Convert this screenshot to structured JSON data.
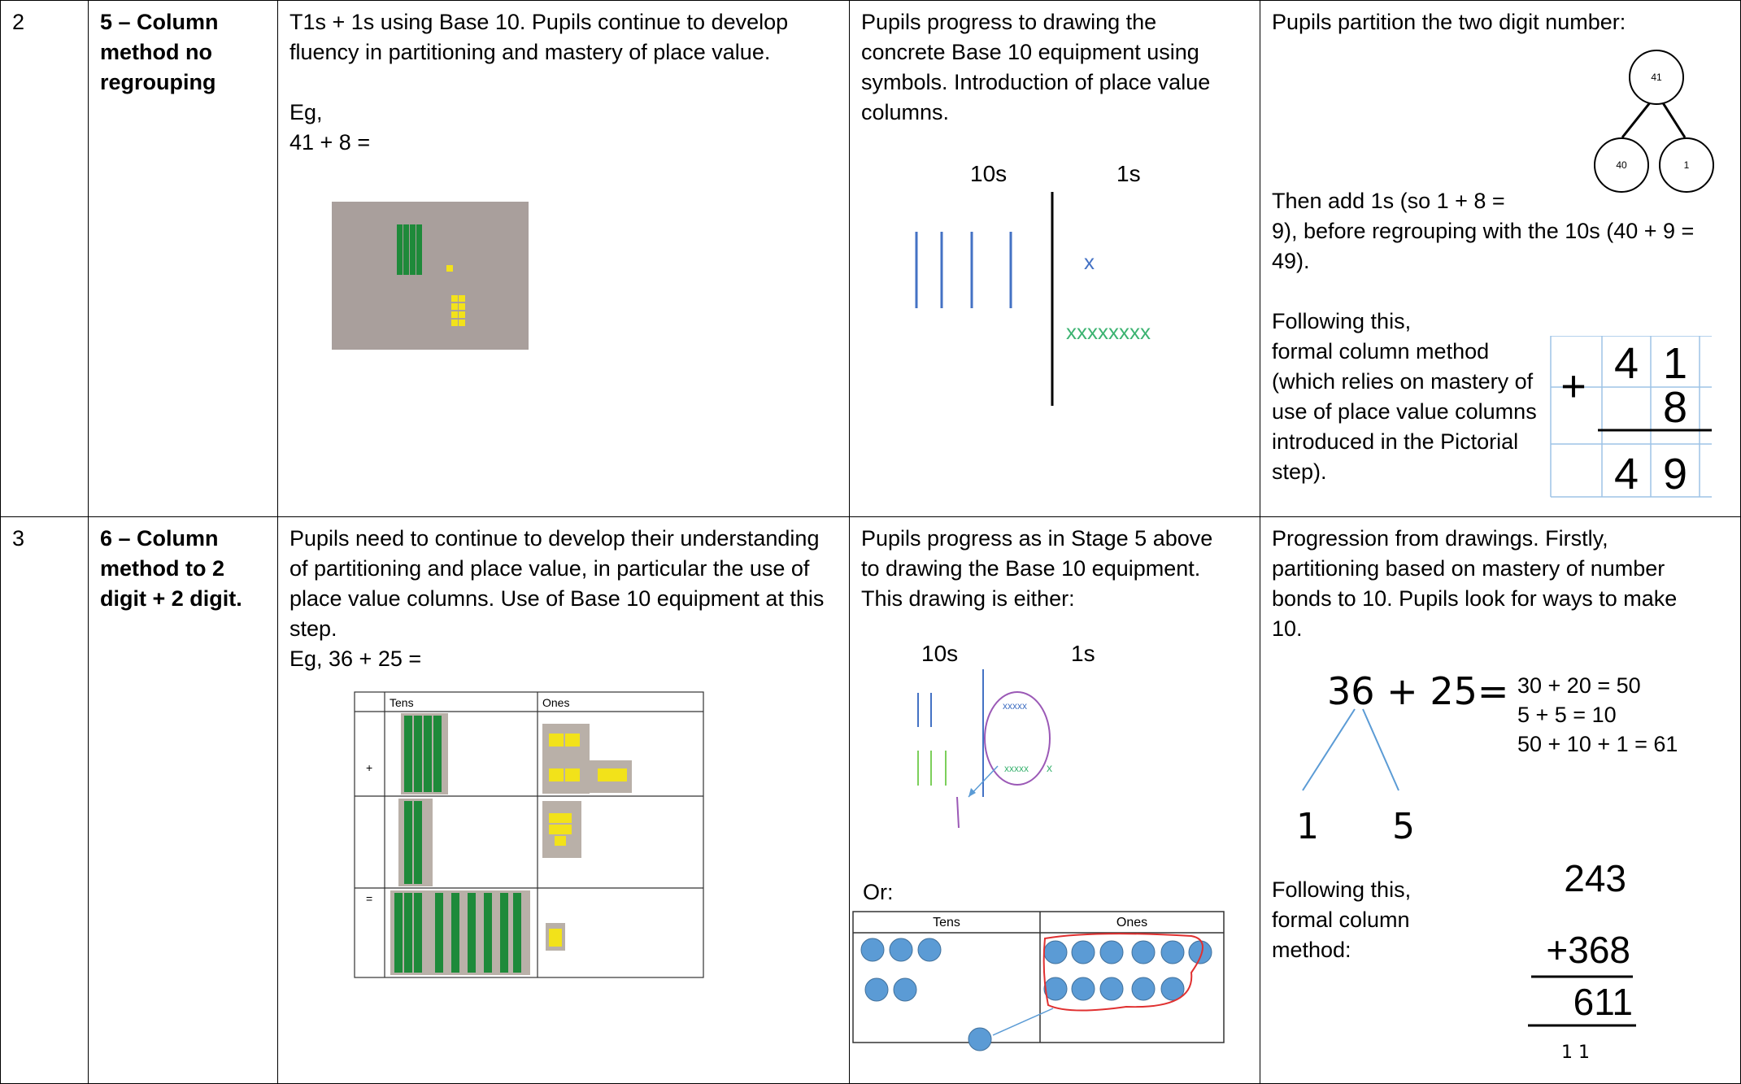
{
  "table": {
    "rows": [
      {
        "step": "2",
        "stage": "5 – Column method no regrouping",
        "concrete": {
          "text": "T1s + 1s using Base 10.  Pupils continue to develop fluency in partitioning and mastery of place value.",
          "example_label": "Eg,",
          "example": "41 + 8 ="
        },
        "pictorial": {
          "text": "Pupils progress to drawing the concrete Base 10 equipment using symbols.  Introduction of place value columns.",
          "tens_header": "10s",
          "ones_header": "1s",
          "ones_marks": [
            "x",
            "xxxxxxxx"
          ]
        },
        "abstract": {
          "intro": "Pupils partition the two digit number:",
          "bond": {
            "whole": "41",
            "parts": [
              "40",
              "1"
            ]
          },
          "then": "Then add 1s (so 1 + 8 = 9), before regrouping with the 10s (40 + 9 = 49).",
          "following": "Following this, formal column method (which relies on mastery of use of place value columns introduced in the Pictorial step).",
          "column": {
            "operator": "+",
            "top": [
              "4",
              "1"
            ],
            "middle": [
              "8"
            ],
            "answer": [
              "4",
              "9"
            ]
          }
        }
      },
      {
        "step": "3",
        "stage": "6 – Column method to 2 digit + 2 digit.",
        "concrete": {
          "text": "Pupils need to continue to develop their understanding of partitioning and place value, in particular the use of place value columns. Use of Base 10 equipment at this step.",
          "example": "Eg, 36 + 25 =",
          "table_headers": [
            "Tens",
            "Ones"
          ],
          "row_operators": [
            "+",
            "="
          ]
        },
        "pictorial": {
          "text": "Pupils progress as in Stage 5 above to drawing the Base 10 equipment.",
          "either": "This drawing is either:",
          "tens_header": "10s",
          "ones_header": "1s",
          "ones_marks": [
            "xxxxx",
            "xxxxx",
            "x"
          ],
          "or": "Or:",
          "table_headers": [
            "Tens",
            "Ones"
          ]
        },
        "abstract": {
          "text": "Progression from drawings.  Firstly, partitioning based on mastery of number bonds to 10.  Pupils look for ways to make 10.",
          "sum": "36 + 25=",
          "parts": [
            "1",
            "5"
          ],
          "working": [
            "30 + 20 = 50",
            "5 + 5 = 10",
            "50 + 10 + 1 = 61"
          ],
          "following": "Following this, formal column method:",
          "column": {
            "top": "243",
            "bottom": "+368",
            "answer": "611",
            "carry": "1 1"
          }
        }
      }
    ]
  }
}
